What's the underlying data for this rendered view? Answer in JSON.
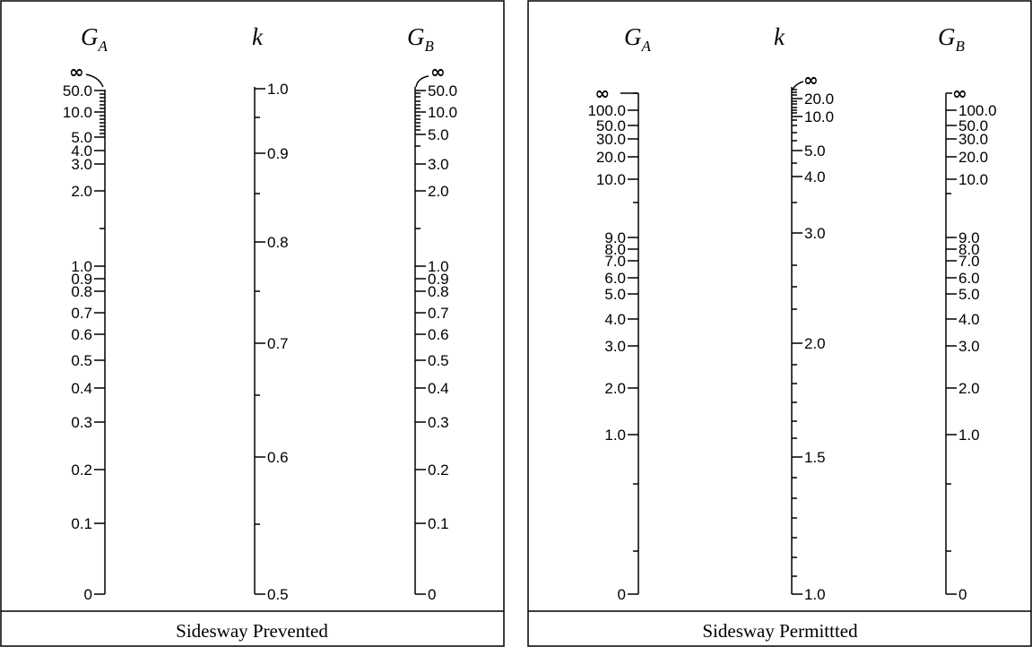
{
  "panels": [
    {
      "id": "prevented",
      "caption": "Sidesway Prevented",
      "scales": [
        {
          "id": "ga",
          "header": {
            "main": "G",
            "sub": "A"
          },
          "infinity_label": "∞",
          "major_ticks": [
            "50.0",
            "10.0",
            "5.0",
            "4.0",
            "3.0",
            "2.0",
            "1.0",
            "0.9",
            "0.8",
            "0.7",
            "0.6",
            "0.5",
            "0.4",
            "0.3",
            "0.2",
            "0.1",
            "0"
          ]
        },
        {
          "id": "k",
          "header": {
            "main": "k",
            "sub": ""
          },
          "major_ticks": [
            "1.0",
            "0.9",
            "0.8",
            "0.7",
            "0.6",
            "0.5"
          ]
        },
        {
          "id": "gb",
          "header": {
            "main": "G",
            "sub": "B"
          },
          "infinity_label": "∞",
          "major_ticks": [
            "50.0",
            "10.0",
            "5.0",
            "3.0",
            "2.0",
            "1.0",
            "0.9",
            "0.8",
            "0.7",
            "0.6",
            "0.5",
            "0.4",
            "0.3",
            "0.2",
            "0.1",
            "0"
          ]
        }
      ]
    },
    {
      "id": "permitted",
      "caption": "Sidesway Permittted",
      "scales": [
        {
          "id": "ga",
          "header": {
            "main": "G",
            "sub": "A"
          },
          "infinity_label": "∞",
          "major_ticks": [
            "100.0",
            "50.0",
            "30.0",
            "20.0",
            "10.0",
            "9.0",
            "8.0",
            "7.0",
            "6.0",
            "5.0",
            "4.0",
            "3.0",
            "2.0",
            "1.0",
            "0"
          ]
        },
        {
          "id": "k",
          "header": {
            "main": "k",
            "sub": ""
          },
          "infinity_label": "∞",
          "major_ticks": [
            "20.0",
            "10.0",
            "5.0",
            "4.0",
            "3.0",
            "2.0",
            "1.5",
            "1.0"
          ]
        },
        {
          "id": "gb",
          "header": {
            "main": "G",
            "sub": "B"
          },
          "infinity_label": "∞",
          "major_ticks": [
            "100.0",
            "50.0",
            "30.0",
            "20.0",
            "10.0",
            "9.0",
            "8.0",
            "7.0",
            "6.0",
            "5.0",
            "4.0",
            "3.0",
            "2.0",
            "1.0",
            "0"
          ]
        }
      ]
    }
  ]
}
